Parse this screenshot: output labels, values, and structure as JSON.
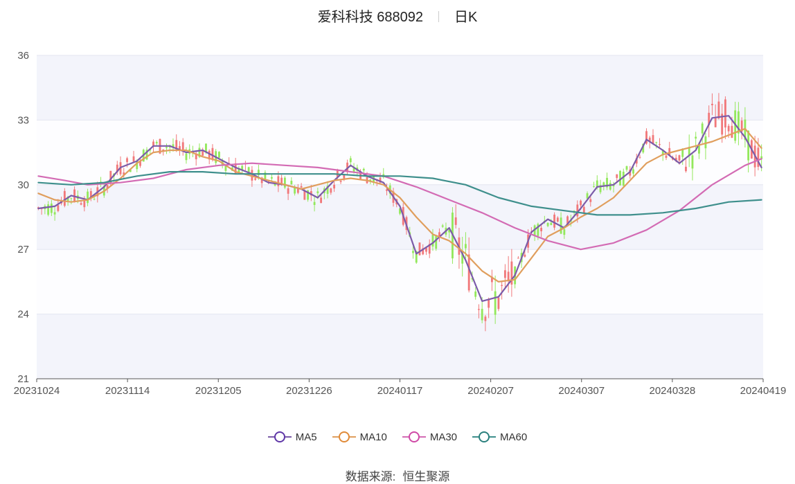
{
  "header": {
    "title": "爱科科技 688092",
    "period": "日K"
  },
  "source": {
    "label": "数据来源:",
    "value": "恒生聚源"
  },
  "colors": {
    "up": "#f1787a",
    "down": "#93e85c",
    "MA5": "#7b5ba8",
    "MA10": "#e09e5d",
    "MA30": "#d36bb4",
    "MA60": "#3e8f8c"
  },
  "chart_data": {
    "type": "candlestick",
    "title": "爱科科技 688092",
    "ylim": [
      21,
      36
    ],
    "yticks": [
      21,
      24,
      27,
      30,
      33,
      36
    ],
    "xticks": [
      "20231024",
      "20231114",
      "20231205",
      "20231226",
      "20240117",
      "20240207",
      "20240307",
      "20240328",
      "20240419"
    ],
    "grid": true,
    "legend_position": "bottom",
    "legend": [
      "MA5",
      "MA10",
      "MA30",
      "MA60"
    ],
    "series": [
      {
        "name": "MA5",
        "points": [
          [
            0,
            28.9
          ],
          [
            5,
            29.0
          ],
          [
            10,
            29.5
          ],
          [
            15,
            29.3
          ],
          [
            20,
            29.9
          ],
          [
            25,
            30.8
          ],
          [
            30,
            31.1
          ],
          [
            35,
            31.8
          ],
          [
            40,
            31.8
          ],
          [
            45,
            31.5
          ],
          [
            50,
            31.6
          ],
          [
            55,
            31.2
          ],
          [
            60,
            30.8
          ],
          [
            65,
            30.5
          ],
          [
            70,
            30.1
          ],
          [
            75,
            30.0
          ],
          [
            80,
            29.8
          ],
          [
            85,
            29.4
          ],
          [
            90,
            30.2
          ],
          [
            95,
            30.9
          ],
          [
            100,
            30.4
          ],
          [
            105,
            30.1
          ],
          [
            110,
            29.0
          ],
          [
            115,
            26.8
          ],
          [
            120,
            27.3
          ],
          [
            125,
            28.0
          ],
          [
            130,
            26.5
          ],
          [
            135,
            24.6
          ],
          [
            140,
            24.8
          ],
          [
            145,
            25.8
          ],
          [
            150,
            27.8
          ],
          [
            155,
            28.4
          ],
          [
            160,
            28.0
          ],
          [
            165,
            28.9
          ],
          [
            170,
            29.9
          ],
          [
            175,
            30.0
          ],
          [
            180,
            30.6
          ],
          [
            185,
            32.1
          ],
          [
            190,
            31.6
          ],
          [
            195,
            31.0
          ],
          [
            200,
            31.6
          ],
          [
            205,
            33.1
          ],
          [
            210,
            33.2
          ],
          [
            215,
            32.2
          ],
          [
            220,
            30.8
          ]
        ]
      },
      {
        "name": "MA10",
        "points": [
          [
            0,
            29.6
          ],
          [
            5,
            29.3
          ],
          [
            10,
            29.2
          ],
          [
            15,
            29.3
          ],
          [
            20,
            29.7
          ],
          [
            25,
            30.3
          ],
          [
            30,
            31.0
          ],
          [
            35,
            31.5
          ],
          [
            40,
            31.6
          ],
          [
            45,
            31.6
          ],
          [
            50,
            31.3
          ],
          [
            55,
            31.1
          ],
          [
            60,
            30.6
          ],
          [
            65,
            30.4
          ],
          [
            70,
            30.2
          ],
          [
            75,
            30.0
          ],
          [
            80,
            29.8
          ],
          [
            85,
            30.0
          ],
          [
            90,
            30.2
          ],
          [
            95,
            30.3
          ],
          [
            100,
            30.2
          ],
          [
            105,
            30.0
          ],
          [
            110,
            29.4
          ],
          [
            115,
            28.5
          ],
          [
            120,
            27.7
          ],
          [
            125,
            27.4
          ],
          [
            130,
            26.8
          ],
          [
            135,
            26.0
          ],
          [
            140,
            25.5
          ],
          [
            145,
            25.6
          ],
          [
            150,
            26.6
          ],
          [
            155,
            27.6
          ],
          [
            160,
            28.0
          ],
          [
            165,
            28.5
          ],
          [
            170,
            28.9
          ],
          [
            175,
            29.4
          ],
          [
            180,
            30.2
          ],
          [
            185,
            31.0
          ],
          [
            190,
            31.4
          ],
          [
            195,
            31.6
          ],
          [
            200,
            31.8
          ],
          [
            205,
            32.0
          ],
          [
            210,
            32.3
          ],
          [
            215,
            32.6
          ],
          [
            220,
            31.7
          ]
        ]
      },
      {
        "name": "MA30",
        "points": [
          [
            0,
            30.4
          ],
          [
            8,
            30.2
          ],
          [
            15,
            30.0
          ],
          [
            25,
            30.1
          ],
          [
            35,
            30.3
          ],
          [
            45,
            30.7
          ],
          [
            55,
            30.9
          ],
          [
            65,
            31.0
          ],
          [
            75,
            30.9
          ],
          [
            85,
            30.8
          ],
          [
            95,
            30.6
          ],
          [
            105,
            30.4
          ],
          [
            115,
            29.9
          ],
          [
            125,
            29.3
          ],
          [
            135,
            28.7
          ],
          [
            145,
            28.0
          ],
          [
            155,
            27.4
          ],
          [
            165,
            27.0
          ],
          [
            175,
            27.3
          ],
          [
            185,
            27.9
          ],
          [
            195,
            28.8
          ],
          [
            205,
            30.0
          ],
          [
            215,
            30.9
          ],
          [
            220,
            31.2
          ]
        ]
      },
      {
        "name": "MA60",
        "points": [
          [
            0,
            30.1
          ],
          [
            10,
            30.0
          ],
          [
            20,
            30.1
          ],
          [
            30,
            30.4
          ],
          [
            40,
            30.6
          ],
          [
            50,
            30.6
          ],
          [
            60,
            30.5
          ],
          [
            70,
            30.5
          ],
          [
            80,
            30.5
          ],
          [
            90,
            30.5
          ],
          [
            100,
            30.4
          ],
          [
            110,
            30.4
          ],
          [
            120,
            30.3
          ],
          [
            130,
            30.0
          ],
          [
            140,
            29.4
          ],
          [
            150,
            29.0
          ],
          [
            160,
            28.8
          ],
          [
            170,
            28.6
          ],
          [
            180,
            28.6
          ],
          [
            190,
            28.7
          ],
          [
            200,
            28.9
          ],
          [
            210,
            29.2
          ],
          [
            220,
            29.3
          ]
        ]
      }
    ]
  }
}
